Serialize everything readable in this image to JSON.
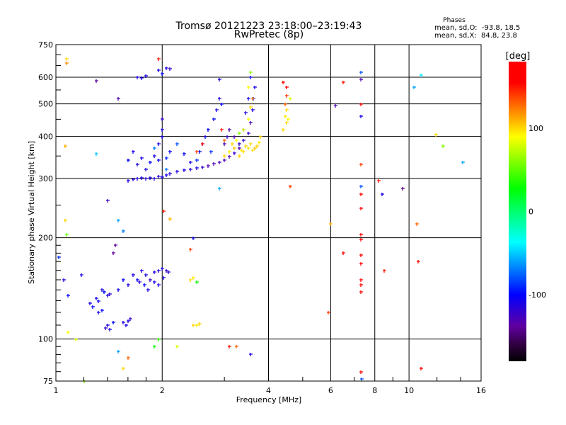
{
  "chart_data": {
    "type": "scatter",
    "title": "Tromsø 20121223 23:18:00–23:19:43",
    "subtitle": "RwPretec (8p)",
    "xlabel": "Frequency [MHz]",
    "ylabel": "Stationary phase Virtual Height [km]",
    "xscale": "log",
    "yscale": "log",
    "xlim": [
      1,
      16
    ],
    "ylim": [
      75,
      750
    ],
    "xticks": [
      1,
      2,
      4,
      6,
      8,
      10,
      16
    ],
    "xtick_labels": [
      "1",
      "2",
      "4",
      "6",
      "8",
      "10",
      "16"
    ],
    "yticks": [
      75,
      100,
      200,
      300,
      400,
      500,
      600,
      750
    ],
    "ytick_labels": [
      "75",
      "100",
      "200",
      "300",
      "400",
      "500",
      "600",
      "750"
    ],
    "grid": true,
    "legend": {
      "title": "Phases",
      "lines": [
        "mean, sd,O:  -93.8, 18.5",
        "mean, sd,X:  84.8, 23.8"
      ],
      "placement": "top-right"
    },
    "colorbar": {
      "label": "[deg]",
      "range": [
        -180,
        180
      ],
      "ticks": [
        100,
        0,
        -100
      ],
      "tick_labels": [
        "100",
        "0",
        "-100"
      ],
      "stops": [
        [
          -180,
          "#000000"
        ],
        [
          -160,
          "#300040"
        ],
        [
          -138,
          "#6000a0"
        ],
        [
          -100,
          "#0000ff"
        ],
        [
          -37,
          "#00ffff"
        ],
        [
          28,
          "#00ff00"
        ],
        [
          90,
          "#ffff00"
        ],
        [
          155,
          "#ff0000"
        ],
        [
          180,
          "#ff0000"
        ]
      ]
    },
    "point_fields": [
      "frequency_MHz",
      "height_km",
      "phase_deg"
    ],
    "points": [
      [
        1.25,
        128,
        -110
      ],
      [
        1.27,
        125,
        -100
      ],
      [
        1.3,
        132,
        -110
      ],
      [
        1.32,
        130,
        -105
      ],
      [
        1.35,
        140,
        -110
      ],
      [
        1.37,
        138,
        -100
      ],
      [
        1.4,
        135,
        -110
      ],
      [
        1.42,
        136,
        -120
      ],
      [
        1.32,
        120,
        -110
      ],
      [
        1.35,
        122,
        -100
      ],
      [
        1.38,
        108,
        -120
      ],
      [
        1.4,
        110,
        -110
      ],
      [
        1.42,
        107,
        -110
      ],
      [
        1.45,
        112,
        -100
      ],
      [
        1.55,
        112,
        -110
      ],
      [
        1.58,
        110,
        -110
      ],
      [
        1.6,
        113,
        -110
      ],
      [
        1.62,
        115,
        -120
      ],
      [
        1.5,
        140,
        -110
      ],
      [
        1.55,
        150,
        -100
      ],
      [
        1.6,
        145,
        -110
      ],
      [
        1.65,
        155,
        -110
      ],
      [
        1.7,
        150,
        -100
      ],
      [
        1.72,
        148,
        -120
      ],
      [
        1.75,
        160,
        -110
      ],
      [
        1.8,
        155,
        -110
      ],
      [
        1.85,
        150,
        -120
      ],
      [
        1.9,
        158,
        -110
      ],
      [
        1.95,
        160,
        -115
      ],
      [
        2.0,
        162,
        -110
      ],
      [
        2.05,
        160,
        -120
      ],
      [
        2.02,
        152,
        -110
      ],
      [
        1.82,
        140,
        -110
      ],
      [
        1.78,
        145,
        -100
      ],
      [
        1.9,
        148,
        -110
      ],
      [
        1.95,
        145,
        -110
      ],
      [
        2.08,
        158,
        -120
      ],
      [
        1.45,
        180,
        -140
      ],
      [
        1.47,
        190,
        -140
      ],
      [
        1.18,
        155,
        -110
      ],
      [
        1.08,
        135,
        -100
      ],
      [
        1.05,
        150,
        -110
      ],
      [
        1.02,
        175,
        -90
      ],
      [
        2.45,
        110,
        100
      ],
      [
        2.5,
        110,
        95
      ],
      [
        2.55,
        111,
        100
      ],
      [
        2.4,
        150,
        100
      ],
      [
        2.45,
        152,
        95
      ],
      [
        2.5,
        148,
        30
      ],
      [
        1.6,
        295,
        -110
      ],
      [
        1.65,
        298,
        -115
      ],
      [
        1.7,
        300,
        -110
      ],
      [
        1.75,
        302,
        -110
      ],
      [
        1.8,
        300,
        -115
      ],
      [
        1.85,
        302,
        -110
      ],
      [
        1.9,
        300,
        -110
      ],
      [
        1.95,
        305,
        -115
      ],
      [
        2.0,
        303,
        -110
      ],
      [
        2.05,
        307,
        -110
      ],
      [
        2.1,
        310,
        -115
      ],
      [
        2.2,
        315,
        -110
      ],
      [
        2.3,
        318,
        -110
      ],
      [
        2.4,
        320,
        -115
      ],
      [
        2.5,
        322,
        -110
      ],
      [
        2.6,
        325,
        -120
      ],
      [
        2.7,
        328,
        -130
      ],
      [
        2.8,
        332,
        -130
      ],
      [
        2.9,
        335,
        -130
      ],
      [
        3.0,
        340,
        -130
      ],
      [
        3.1,
        348,
        -130
      ],
      [
        3.2,
        358,
        -120
      ],
      [
        3.3,
        370,
        -130
      ],
      [
        3.4,
        390,
        -120
      ],
      [
        3.5,
        410,
        -120
      ],
      [
        3.55,
        440,
        -130
      ],
      [
        3.6,
        480,
        -110
      ],
      [
        3.62,
        520,
        -110
      ],
      [
        3.65,
        560,
        -110
      ],
      [
        3.55,
        600,
        -100
      ],
      [
        1.6,
        340,
        -100
      ],
      [
        1.65,
        360,
        -110
      ],
      [
        1.7,
        330,
        -110
      ],
      [
        1.75,
        345,
        -110
      ],
      [
        1.8,
        320,
        -110
      ],
      [
        1.85,
        335,
        -100
      ],
      [
        1.9,
        350,
        -110
      ],
      [
        1.95,
        380,
        -110
      ],
      [
        2.0,
        400,
        -110
      ],
      [
        2.0,
        420,
        -110
      ],
      [
        1.95,
        340,
        -100
      ],
      [
        2.05,
        345,
        -90
      ],
      [
        2.1,
        360,
        -100
      ],
      [
        2.2,
        380,
        -80
      ],
      [
        2.3,
        355,
        -100
      ],
      [
        2.4,
        335,
        -110
      ],
      [
        2.5,
        340,
        -90
      ],
      [
        2.55,
        360,
        -100
      ],
      [
        2.6,
        380,
        -90
      ],
      [
        2.65,
        400,
        -110
      ],
      [
        2.7,
        420,
        -100
      ],
      [
        2.75,
        360,
        -90
      ],
      [
        2.8,
        450,
        -100
      ],
      [
        2.85,
        480,
        -110
      ],
      [
        2.9,
        520,
        -110
      ],
      [
        2.9,
        590,
        -110
      ],
      [
        2.95,
        500,
        -100
      ],
      [
        3.0,
        380,
        -130
      ],
      [
        3.05,
        400,
        -120
      ],
      [
        3.1,
        420,
        -130
      ],
      [
        3.2,
        400,
        -130
      ],
      [
        3.3,
        380,
        -120
      ],
      [
        3.4,
        420,
        -130
      ],
      [
        3.45,
        470,
        -110
      ],
      [
        3.5,
        520,
        -110
      ],
      [
        3.0,
        350,
        100
      ],
      [
        3.1,
        360,
        95
      ],
      [
        3.15,
        380,
        100
      ],
      [
        3.2,
        370,
        105
      ],
      [
        3.25,
        390,
        90
      ],
      [
        3.3,
        350,
        100
      ],
      [
        3.35,
        365,
        95
      ],
      [
        3.4,
        360,
        100
      ],
      [
        3.45,
        375,
        100
      ],
      [
        3.5,
        370,
        95
      ],
      [
        3.55,
        380,
        100
      ],
      [
        3.6,
        365,
        100
      ],
      [
        3.65,
        370,
        105
      ],
      [
        3.7,
        375,
        100
      ],
      [
        3.75,
        385,
        95
      ],
      [
        3.8,
        400,
        100
      ],
      [
        3.4,
        420,
        80
      ],
      [
        3.5,
        450,
        90
      ],
      [
        3.55,
        490,
        100
      ],
      [
        3.6,
        520,
        120
      ],
      [
        3.5,
        560,
        90
      ],
      [
        3.55,
        620,
        60
      ],
      [
        3.3,
        410,
        60
      ],
      [
        3.0,
        390,
        130
      ],
      [
        2.95,
        420,
        150
      ],
      [
        2.6,
        380,
        175
      ],
      [
        2.5,
        360,
        140
      ],
      [
        4.4,
        420,
        100
      ],
      [
        4.45,
        460,
        95
      ],
      [
        4.5,
        480,
        100
      ],
      [
        4.5,
        440,
        100
      ],
      [
        4.45,
        500,
        130
      ],
      [
        4.5,
        530,
        140
      ],
      [
        4.5,
        560,
        170
      ],
      [
        4.4,
        580,
        175
      ],
      [
        4.55,
        450,
        90
      ],
      [
        4.6,
        520,
        80
      ],
      [
        1.7,
        600,
        -110
      ],
      [
        1.75,
        598,
        -110
      ],
      [
        1.8,
        605,
        -110
      ],
      [
        1.95,
        630,
        -110
      ],
      [
        2.0,
        615,
        -100
      ],
      [
        2.05,
        640,
        -110
      ],
      [
        2.1,
        635,
        -120
      ],
      [
        1.5,
        520,
        -130
      ],
      [
        1.3,
        585,
        -140
      ],
      [
        7.3,
        620,
        -80
      ],
      [
        7.3,
        590,
        -130
      ],
      [
        7.3,
        500,
        170
      ],
      [
        7.3,
        460,
        -110
      ],
      [
        7.3,
        330,
        140
      ],
      [
        7.3,
        285,
        -80
      ],
      [
        7.3,
        270,
        175
      ],
      [
        7.3,
        245,
        175
      ],
      [
        7.3,
        205,
        175
      ],
      [
        7.3,
        198,
        170
      ],
      [
        7.3,
        178,
        170
      ],
      [
        7.3,
        168,
        175
      ],
      [
        7.3,
        150,
        170
      ],
      [
        7.3,
        145,
        175
      ],
      [
        7.3,
        138,
        170
      ],
      [
        7.3,
        80,
        175
      ],
      [
        7.35,
        76,
        -80
      ],
      [
        6.5,
        580,
        150
      ],
      [
        6.2,
        495,
        -130
      ],
      [
        6.5,
        180,
        160
      ],
      [
        5.9,
        120,
        140
      ],
      [
        6.0,
        220,
        110
      ],
      [
        4.6,
        285,
        140
      ],
      [
        8.2,
        295,
        150
      ],
      [
        8.4,
        270,
        -110
      ],
      [
        8.5,
        160,
        150
      ],
      [
        9.6,
        280,
        -140
      ],
      [
        10.5,
        220,
        130
      ],
      [
        10.6,
        170,
        170
      ],
      [
        10.8,
        82,
        175
      ],
      [
        10.3,
        560,
        -60
      ],
      [
        10.8,
        610,
        -40
      ],
      [
        11.9,
        405,
        100
      ],
      [
        12.5,
        375,
        60
      ],
      [
        14.2,
        335,
        -60
      ],
      [
        1.07,
        680,
        100
      ],
      [
        1.07,
        660,
        120
      ],
      [
        1.06,
        375,
        110
      ],
      [
        1.06,
        225,
        100
      ],
      [
        1.08,
        105,
        90
      ],
      [
        1.14,
        100,
        80
      ],
      [
        1.2,
        75,
        60
      ],
      [
        1.07,
        205,
        50
      ],
      [
        1.5,
        92,
        -60
      ],
      [
        1.55,
        82,
        100
      ],
      [
        1.6,
        88,
        130
      ],
      [
        1.9,
        95,
        30
      ],
      [
        1.95,
        100,
        40
      ],
      [
        2.2,
        95,
        80
      ],
      [
        2.02,
        240,
        150
      ],
      [
        2.1,
        228,
        110
      ],
      [
        2.4,
        185,
        140
      ],
      [
        2.45,
        200,
        -110
      ],
      [
        2.9,
        280,
        -60
      ],
      [
        3.1,
        95,
        150
      ],
      [
        3.25,
        95,
        130
      ],
      [
        3.55,
        90,
        -110
      ],
      [
        1.95,
        680,
        150
      ],
      [
        1.3,
        355,
        -50
      ],
      [
        1.9,
        370,
        -70
      ],
      [
        2.05,
        320,
        -70
      ],
      [
        1.5,
        225,
        -60
      ],
      [
        1.4,
        258,
        -120
      ],
      [
        1.55,
        210,
        -70
      ],
      [
        2.0,
        450,
        -120
      ]
    ]
  }
}
